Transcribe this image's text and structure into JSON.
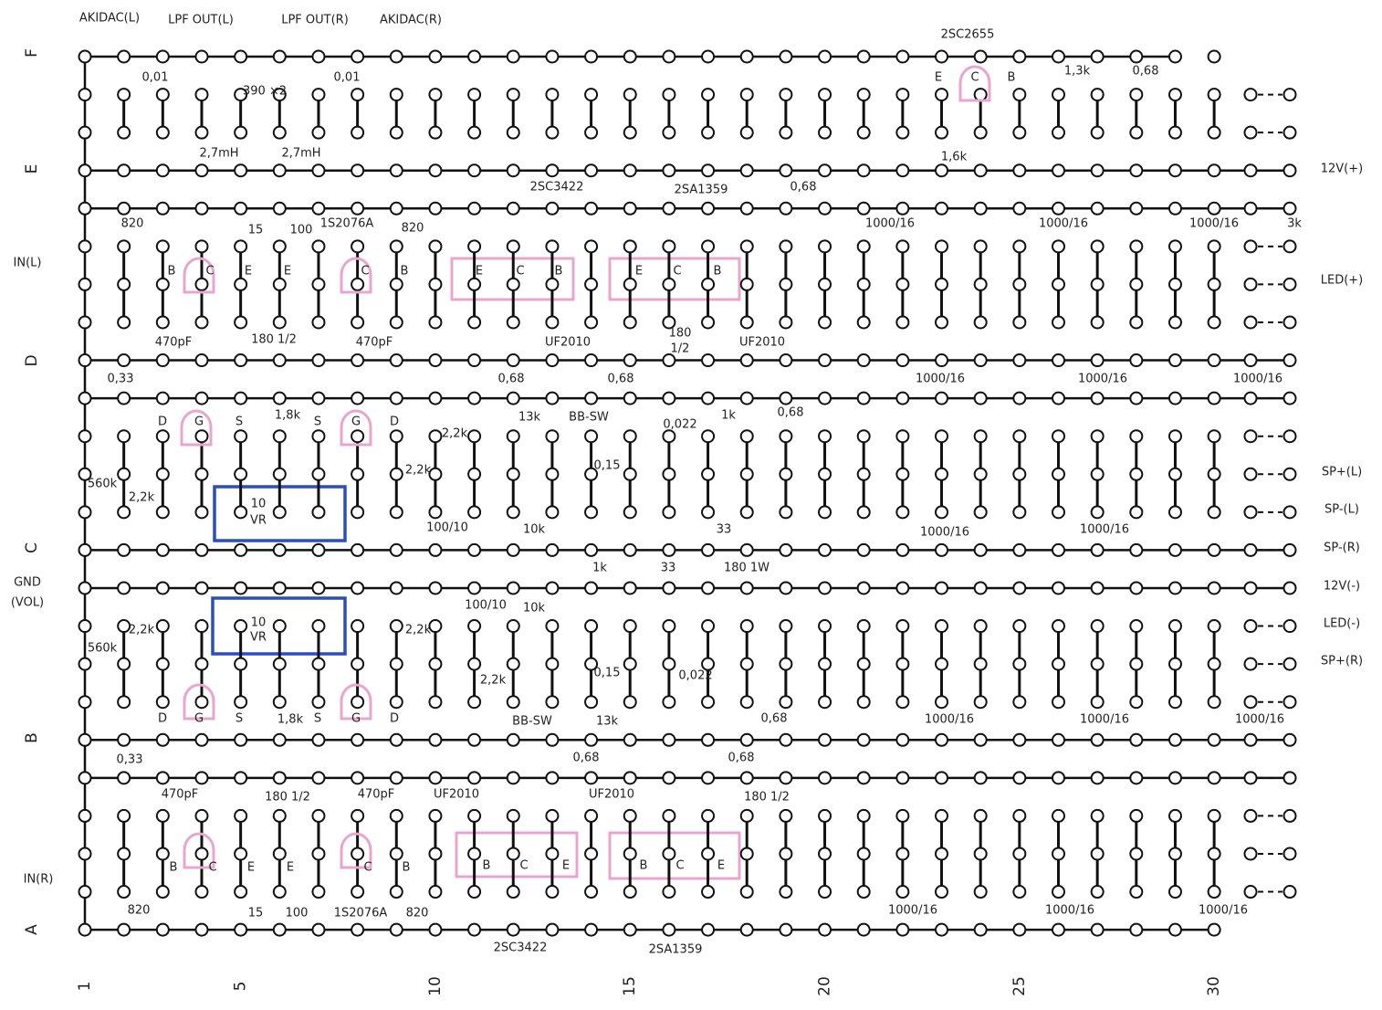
{
  "rows": [
    "F",
    "E",
    "D",
    "C",
    "B",
    "A"
  ],
  "columns": [
    "1",
    "5",
    "10",
    "15",
    "20",
    "25",
    "30"
  ],
  "top_labels": [
    "AKIDAC(L)",
    "LPF OUT(L)",
    "LPF OUT(R)",
    "AKIDAC(R)",
    "2SC2655"
  ],
  "left_labels": [
    "IN(L)",
    "GND",
    "(VOL)",
    "IN(R)"
  ],
  "right_labels": [
    "12V(+)",
    "LED(+)",
    "SP+(L)",
    "SP-(L)",
    "SP-(R)",
    "12V(-)",
    "LED(-)",
    "SP+(R)"
  ],
  "components": [
    "0,01",
    "0,01",
    "390 ×2",
    "2,7mH",
    "2,7mH",
    "E",
    "C",
    "B",
    "1,3k",
    "0,68",
    "1,6k",
    "2SC3422",
    "2SA1359",
    "0,68",
    "820",
    "15",
    "100",
    "1S2076A",
    "820",
    "1000/16",
    "1000/16",
    "1000/16",
    "3k",
    "B",
    "C",
    "E",
    "E",
    "C",
    "B",
    "E",
    "C",
    "B",
    "E",
    "C",
    "B",
    "470pF",
    "180 1/2",
    "470pF",
    "UF2010",
    "180",
    "1/2",
    "UF2010",
    "0,33",
    "0,68",
    "0,68",
    "1000/16",
    "1000/16",
    "1000/16",
    "D",
    "G",
    "S",
    "1,8k",
    "S",
    "G",
    "D",
    "2,2k",
    "13k",
    "BB-SW",
    "0,022",
    "1k",
    "0,68",
    "0,15",
    "560k",
    "2,2k",
    "2,2k",
    "10",
    "VR",
    "100/10",
    "10k",
    "33",
    "1000/16",
    "1000/16",
    "1k",
    "33",
    "180 1W",
    "100/10",
    "10k",
    "10",
    "VR",
    "560k",
    "2,2k",
    "2,2k",
    "0,15",
    "2,2k",
    "0,022",
    "D",
    "G",
    "S",
    "1,8k",
    "S",
    "G",
    "D",
    "BB-SW",
    "13k",
    "0,68",
    "1000/16",
    "1000/16",
    "1000/16",
    "0,33",
    "0,68",
    "0,68",
    "470pF",
    "180 1/2",
    "470pF",
    "UF2010",
    "UF2010",
    "180 1/2",
    "B",
    "C",
    "E",
    "E",
    "C",
    "B",
    "B",
    "C",
    "E",
    "B",
    "C",
    "E",
    "820",
    "15",
    "100",
    "1S2076A",
    "820",
    "1000/16",
    "1000/16",
    "1000/16",
    "2SC3422",
    "2SA1359"
  ]
}
